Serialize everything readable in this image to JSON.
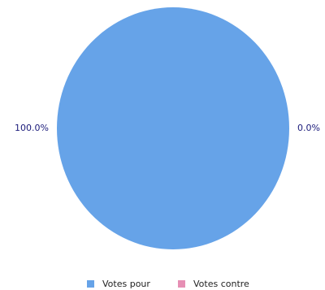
{
  "chart_data": {
    "type": "pie",
    "categories": [
      "Votes pour",
      "Votes contre"
    ],
    "values": [
      100.0,
      0.0
    ],
    "labels": [
      "100.0%",
      "0.0%"
    ],
    "colors": [
      "#66a3e8",
      "#e68fb4"
    ],
    "legend_position": "bottom"
  }
}
